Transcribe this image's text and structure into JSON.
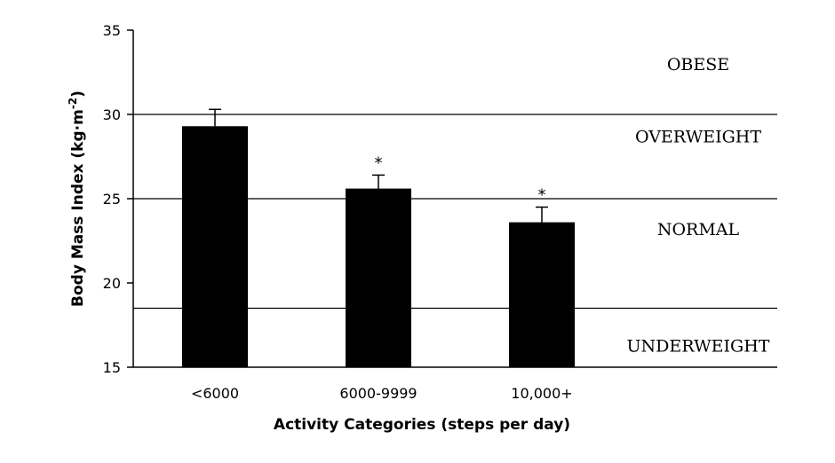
{
  "chart_data": {
    "type": "bar",
    "title": "",
    "xlabel": "Activity Categories (steps per day)",
    "ylabel_main": "Body Mass Index (kg",
    "ylabel_dot": "·",
    "ylabel_unit": "m",
    "ylabel_sup": "-2",
    "ylabel_close": ")",
    "ylim": [
      15,
      35
    ],
    "yticks": [
      15,
      20,
      25,
      30,
      35
    ],
    "categories": [
      "<6000",
      "6000-9999",
      "10,000+"
    ],
    "values": [
      29.3,
      25.6,
      23.6
    ],
    "error_upper": [
      30.3,
      26.4,
      24.5
    ],
    "significance": [
      "",
      "*",
      "*"
    ],
    "bar_color": "#000000",
    "thresholds": [
      18.5,
      25,
      30
    ],
    "zones": [
      {
        "label": "OBESE",
        "value": 33.0
      },
      {
        "label": "OVERWEIGHT",
        "value": 28.7
      },
      {
        "label": "NORMAL",
        "value": 23.2
      },
      {
        "label": "UNDERWEIGHT",
        "value": 16.3
      }
    ],
    "grid": false,
    "legend": "none"
  }
}
